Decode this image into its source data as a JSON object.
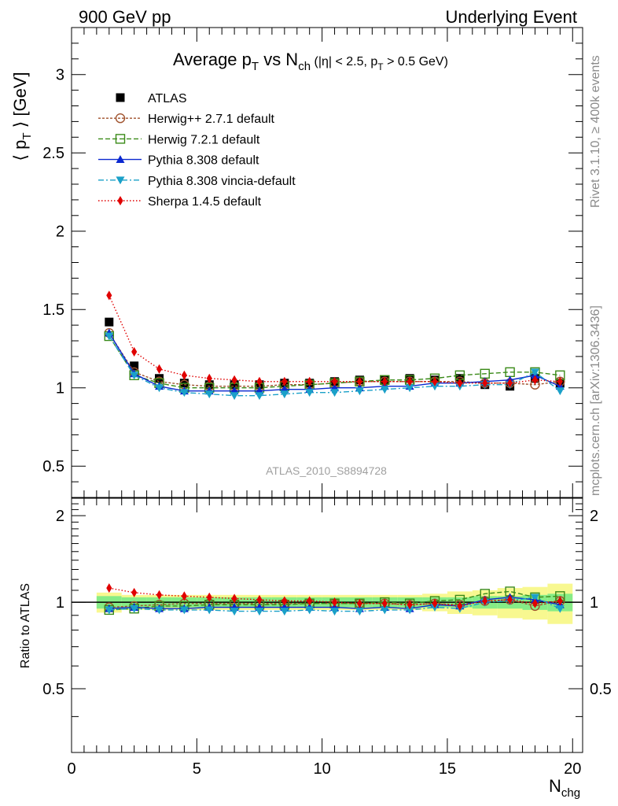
{
  "header": {
    "left": "900 GeV pp",
    "right": "Underlying Event"
  },
  "title": {
    "main": "Average p",
    "main_sub": "T",
    "vs": " vs N",
    "vs_sub": "ch",
    "cuts_a": " (|η| < 2.5, p",
    "cuts_sub": "T",
    "cuts_b": " > 0.5 GeV)"
  },
  "ylabel_top": {
    "open": "⟨ p",
    "sub": "T",
    "close": " ⟩ [GeV]"
  },
  "ylabel_bottom": "Ratio to ATLAS",
  "xlabel": {
    "main": "N",
    "sub": "chg"
  },
  "watermark": "ATLAS_2010_S8894728",
  "side_text_1": "Rivet 3.1.10, ≥ 400k events",
  "side_text_2": "mcplots.cern.ch [arXiv:1306.3436]",
  "legend_placement": "top-left",
  "colors": {
    "data": "#000000",
    "herwigpp": "#a0522d",
    "herwig7": "#3a8a18",
    "pythia": "#0a28d0",
    "vincia": "#1aa0c8",
    "sherpa": "#e00000",
    "band_inner": "#86ec86",
    "band_outer": "#f8f890"
  },
  "chart_data": [
    {
      "type": "line",
      "panel": "main",
      "xlim": [
        0,
        20.4
      ],
      "ylim": [
        0.3,
        3.3
      ],
      "yticks": [
        "0.5",
        "1",
        "1.5",
        "2",
        "2.5",
        "3"
      ],
      "x": [
        1.5,
        2.5,
        3.5,
        4.5,
        5.5,
        6.5,
        7.5,
        8.5,
        9.5,
        10.5,
        11.5,
        12.5,
        13.5,
        14.5,
        15.5,
        16.5,
        17.5,
        18.5,
        19.5
      ],
      "series": [
        {
          "name": "ATLAS",
          "marker": "square",
          "values": [
            1.42,
            1.14,
            1.06,
            1.03,
            1.02,
            1.02,
            1.02,
            1.03,
            1.03,
            1.04,
            1.05,
            1.05,
            1.06,
            1.05,
            1.06,
            1.02,
            1.01,
            1.06,
            1.03
          ]
        },
        {
          "name": "Herwig++ 2.7.1 default",
          "marker": "open-circle",
          "dash": "3,2",
          "values": [
            1.35,
            1.1,
            1.04,
            1.02,
            1.01,
            1.01,
            1.01,
            1.02,
            1.02,
            1.03,
            1.04,
            1.04,
            1.04,
            1.04,
            1.04,
            1.03,
            1.03,
            1.02,
            1.04
          ]
        },
        {
          "name": "Herwig 7.2.1 default",
          "marker": "open-square",
          "dash": "6,3",
          "values": [
            1.33,
            1.08,
            1.03,
            1.0,
            1.0,
            1.0,
            1.0,
            1.01,
            1.02,
            1.03,
            1.04,
            1.05,
            1.05,
            1.06,
            1.08,
            1.09,
            1.1,
            1.1,
            1.08
          ]
        },
        {
          "name": "Pythia 8.308 default",
          "marker": "triangle-up",
          "dash": "",
          "values": [
            1.35,
            1.09,
            1.01,
            0.98,
            0.98,
            0.98,
            0.98,
            0.99,
            0.99,
            1.0,
            1.0,
            1.01,
            1.01,
            1.03,
            1.03,
            1.04,
            1.05,
            1.08,
            1.01
          ]
        },
        {
          "name": "Pythia 8.308 vincia-default",
          "marker": "triangle-down",
          "dash": "7,3,2,3",
          "values": [
            1.33,
            1.08,
            1.0,
            0.97,
            0.96,
            0.95,
            0.95,
            0.96,
            0.97,
            0.97,
            0.98,
            0.99,
            1.0,
            1.01,
            1.01,
            1.02,
            1.02,
            1.1,
            0.98
          ]
        },
        {
          "name": "Sherpa 1.4.5 default",
          "marker": "diamond",
          "dash": "1.5,2.5",
          "values": [
            1.59,
            1.23,
            1.12,
            1.08,
            1.06,
            1.05,
            1.04,
            1.04,
            1.04,
            1.04,
            1.04,
            1.04,
            1.04,
            1.04,
            1.03,
            1.03,
            1.03,
            1.05,
            1.04
          ]
        }
      ]
    },
    {
      "type": "line",
      "panel": "ratio",
      "xlim": [
        0,
        20.4
      ],
      "ylim": [
        0.3,
        2.3
      ],
      "yticks": [
        "0.5",
        "1",
        "2"
      ],
      "xticks": [
        "0",
        "5",
        "10",
        "15",
        "20"
      ],
      "x": [
        1.5,
        2.5,
        3.5,
        4.5,
        5.5,
        6.5,
        7.5,
        8.5,
        9.5,
        10.5,
        11.5,
        12.5,
        13.5,
        14.5,
        15.5,
        16.5,
        17.5,
        18.5,
        19.5
      ],
      "band_inner": [
        0.05,
        0.04,
        0.04,
        0.04,
        0.04,
        0.04,
        0.04,
        0.04,
        0.04,
        0.04,
        0.04,
        0.04,
        0.04,
        0.04,
        0.04,
        0.05,
        0.05,
        0.06,
        0.07
      ],
      "band_outer": [
        0.08,
        0.06,
        0.06,
        0.06,
        0.06,
        0.06,
        0.06,
        0.06,
        0.06,
        0.06,
        0.06,
        0.06,
        0.06,
        0.07,
        0.09,
        0.1,
        0.12,
        0.13,
        0.16
      ],
      "series": [
        {
          "name": "Herwig++ 2.7.1 default",
          "marker": "open-circle",
          "dash": "3,2",
          "values": [
            0.96,
            0.97,
            0.98,
            0.99,
            0.99,
            0.99,
            0.99,
            0.99,
            0.99,
            0.99,
            0.99,
            0.99,
            0.98,
            0.99,
            0.98,
            1.01,
            1.02,
            0.97,
            1.01
          ]
        },
        {
          "name": "Herwig 7.2.1 default",
          "marker": "open-square",
          "dash": "6,3",
          "values": [
            0.94,
            0.95,
            0.97,
            0.97,
            0.98,
            0.98,
            0.98,
            0.98,
            0.99,
            0.99,
            0.99,
            1.0,
            0.99,
            1.01,
            1.02,
            1.07,
            1.09,
            1.04,
            1.05
          ]
        },
        {
          "name": "Pythia 8.308 default",
          "marker": "triangle-up",
          "dash": "",
          "values": [
            0.95,
            0.96,
            0.95,
            0.95,
            0.96,
            0.96,
            0.96,
            0.96,
            0.96,
            0.96,
            0.95,
            0.96,
            0.95,
            0.98,
            0.97,
            1.02,
            1.04,
            1.02,
            0.98
          ]
        },
        {
          "name": "Pythia 8.308 vincia-default",
          "marker": "triangle-down",
          "dash": "7,3,2,3",
          "values": [
            0.94,
            0.95,
            0.94,
            0.94,
            0.94,
            0.93,
            0.93,
            0.93,
            0.94,
            0.93,
            0.93,
            0.94,
            0.94,
            0.96,
            0.95,
            1.0,
            1.01,
            1.04,
            0.95
          ]
        },
        {
          "name": "Sherpa 1.4.5 default",
          "marker": "diamond",
          "dash": "1.5,2.5",
          "values": [
            1.12,
            1.08,
            1.06,
            1.05,
            1.04,
            1.03,
            1.02,
            1.01,
            1.01,
            1.0,
            0.99,
            0.99,
            0.98,
            0.99,
            0.97,
            1.01,
            1.02,
            0.99,
            1.01
          ]
        }
      ]
    }
  ]
}
